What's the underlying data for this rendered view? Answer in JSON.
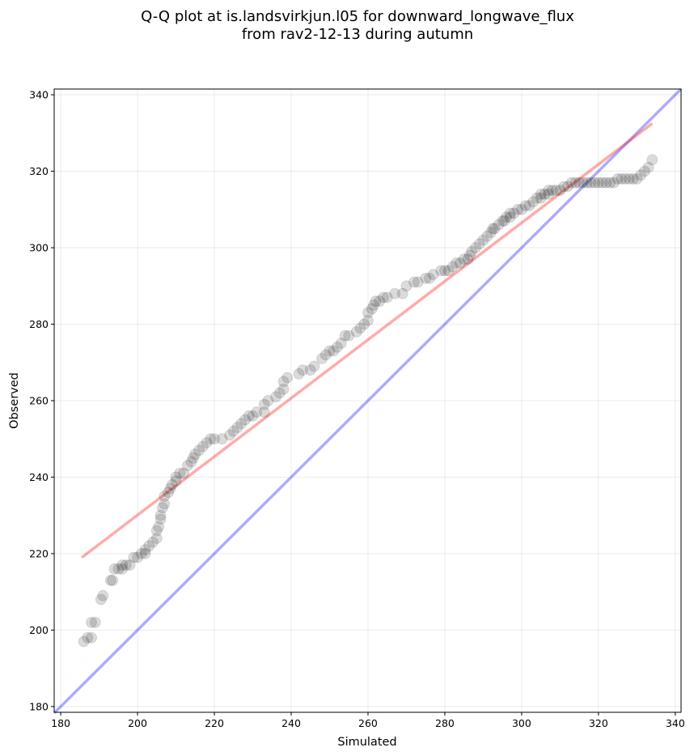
{
  "chart_data": {
    "type": "scatter",
    "title": "Q-Q plot at is.landsvirkjun.l05 for downward_longwave_flux",
    "subtitle": "from rav2-12-13 during autumn",
    "xlabel": "Simulated",
    "ylabel": "Observed",
    "xlim": [
      178.3,
      341.5
    ],
    "ylim": [
      178.5,
      341.5
    ],
    "xticks": [
      180,
      200,
      220,
      240,
      260,
      280,
      300,
      320,
      340
    ],
    "yticks": [
      180,
      200,
      220,
      240,
      260,
      280,
      300,
      320,
      340
    ],
    "grid": true,
    "colors": {
      "points": "#000000",
      "fit_line": "#ff0000",
      "identity_line": "#0000ff"
    },
    "fit_line": {
      "x": [
        185.5,
        334
      ],
      "y": [
        219,
        332.5
      ]
    },
    "identity_line": {
      "x": [
        178.3,
        341.5
      ],
      "y": [
        178.3,
        341.5
      ]
    },
    "points": [
      [
        186,
        197
      ],
      [
        187,
        198
      ],
      [
        188,
        198
      ],
      [
        188,
        202
      ],
      [
        189,
        202
      ],
      [
        190.5,
        208
      ],
      [
        191,
        209
      ],
      [
        193,
        213
      ],
      [
        193.5,
        213
      ],
      [
        194,
        216
      ],
      [
        195,
        216
      ],
      [
        196,
        216
      ],
      [
        196,
        217
      ],
      [
        197,
        217
      ],
      [
        198,
        217
      ],
      [
        199,
        219
      ],
      [
        200,
        219
      ],
      [
        201,
        220
      ],
      [
        202,
        220
      ],
      [
        202,
        221
      ],
      [
        203,
        222
      ],
      [
        204,
        223
      ],
      [
        205,
        224
      ],
      [
        205,
        226
      ],
      [
        205.5,
        227
      ],
      [
        206,
        229
      ],
      [
        206,
        230
      ],
      [
        206.5,
        232
      ],
      [
        207,
        233
      ],
      [
        207,
        235
      ],
      [
        208,
        236
      ],
      [
        208.5,
        237
      ],
      [
        209,
        238
      ],
      [
        210,
        239
      ],
      [
        210,
        240
      ],
      [
        211,
        241
      ],
      [
        212,
        241
      ],
      [
        213,
        243
      ],
      [
        214,
        244
      ],
      [
        214.5,
        245
      ],
      [
        215,
        246
      ],
      [
        216,
        247
      ],
      [
        217,
        248
      ],
      [
        218,
        249
      ],
      [
        219,
        250
      ],
      [
        220,
        250
      ],
      [
        222,
        250
      ],
      [
        224,
        251
      ],
      [
        225,
        252
      ],
      [
        226,
        253
      ],
      [
        227,
        254
      ],
      [
        228,
        255
      ],
      [
        229,
        256
      ],
      [
        230,
        256
      ],
      [
        231,
        257
      ],
      [
        233,
        257
      ],
      [
        233,
        259
      ],
      [
        234,
        260
      ],
      [
        236,
        261
      ],
      [
        237,
        262
      ],
      [
        238,
        263
      ],
      [
        238,
        265
      ],
      [
        239,
        266
      ],
      [
        242,
        267
      ],
      [
        243,
        268
      ],
      [
        245,
        268
      ],
      [
        246,
        269
      ],
      [
        248,
        271
      ],
      [
        249,
        272
      ],
      [
        250,
        273
      ],
      [
        251,
        273
      ],
      [
        252,
        274
      ],
      [
        253,
        275
      ],
      [
        254,
        277
      ],
      [
        255,
        277
      ],
      [
        257,
        278
      ],
      [
        258,
        279
      ],
      [
        259,
        280
      ],
      [
        260,
        281
      ],
      [
        260,
        283
      ],
      [
        261,
        284
      ],
      [
        261.5,
        285
      ],
      [
        262,
        286
      ],
      [
        263,
        286
      ],
      [
        264,
        287
      ],
      [
        265,
        287
      ],
      [
        267,
        288
      ],
      [
        269,
        288
      ],
      [
        270,
        290
      ],
      [
        272,
        291
      ],
      [
        273,
        291
      ],
      [
        275,
        292
      ],
      [
        276,
        292
      ],
      [
        277,
        293
      ],
      [
        279,
        294
      ],
      [
        280,
        294
      ],
      [
        281,
        294
      ],
      [
        282,
        295
      ],
      [
        283,
        296
      ],
      [
        284,
        296
      ],
      [
        285,
        297
      ],
      [
        286,
        297
      ],
      [
        286.5,
        298
      ],
      [
        287,
        299
      ],
      [
        288,
        300
      ],
      [
        289,
        301
      ],
      [
        290,
        302
      ],
      [
        291,
        303
      ],
      [
        292,
        304
      ],
      [
        292.5,
        305
      ],
      [
        293,
        305
      ],
      [
        294,
        306
      ],
      [
        295,
        307
      ],
      [
        295.5,
        307
      ],
      [
        296,
        308
      ],
      [
        297,
        308
      ],
      [
        297,
        309
      ],
      [
        298,
        309
      ],
      [
        299,
        310
      ],
      [
        300,
        310
      ],
      [
        301,
        311
      ],
      [
        302,
        311
      ],
      [
        303,
        312
      ],
      [
        304,
        313
      ],
      [
        305,
        313
      ],
      [
        305,
        314
      ],
      [
        306,
        314
      ],
      [
        307,
        314
      ],
      [
        307,
        315
      ],
      [
        308,
        315
      ],
      [
        309,
        315
      ],
      [
        310,
        315
      ],
      [
        311,
        316
      ],
      [
        312,
        316
      ],
      [
        313,
        317
      ],
      [
        314,
        317
      ],
      [
        315,
        317
      ],
      [
        316,
        317
      ],
      [
        317,
        317
      ],
      [
        318,
        317
      ],
      [
        319,
        317
      ],
      [
        320,
        317
      ],
      [
        321,
        317
      ],
      [
        322,
        317
      ],
      [
        323,
        317
      ],
      [
        324,
        317
      ],
      [
        325,
        318
      ],
      [
        326,
        318
      ],
      [
        327,
        318
      ],
      [
        328,
        318
      ],
      [
        329,
        318
      ],
      [
        330,
        318
      ],
      [
        331,
        319
      ],
      [
        332,
        320
      ],
      [
        333,
        321
      ],
      [
        334,
        323
      ]
    ]
  }
}
